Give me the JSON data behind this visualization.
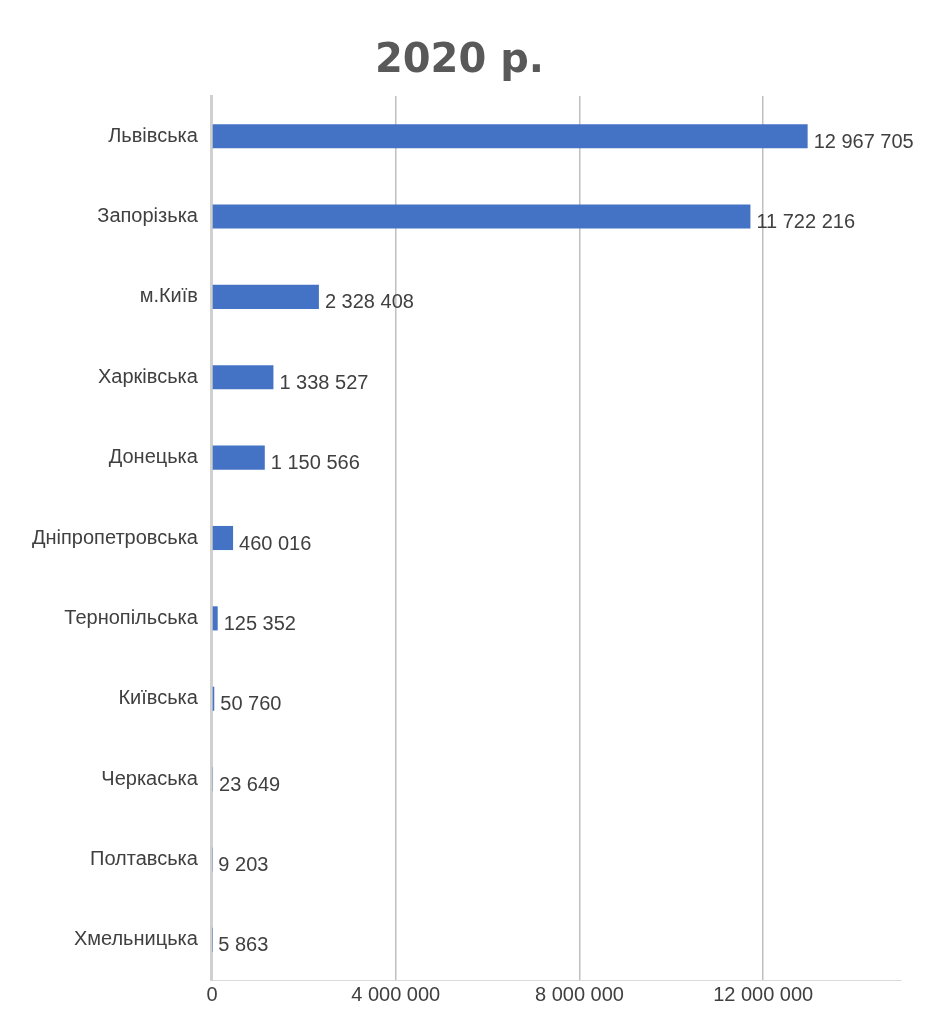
{
  "chart_data": {
    "type": "bar",
    "orientation": "horizontal",
    "title": "2020 р.",
    "categories": [
      "Львівська",
      "Запорізька",
      "м.Київ",
      "Харківська",
      "Донецька",
      "Дніпропетровська",
      "Тернопільська",
      "Київська",
      "Черкаська",
      "Полтавська",
      "Хмельницька"
    ],
    "values": [
      12967705,
      11722216,
      2328408,
      1338527,
      1150566,
      460016,
      125352,
      50760,
      23649,
      9203,
      5863
    ],
    "color": "#4472c4",
    "data_labels": true,
    "grid": "x",
    "xlim": [
      0,
      15000000
    ],
    "xticks": [
      0,
      {
        "value": 4000000,
        "label": "4 000 000"
      },
      {
        "value": 8000000,
        "label": "8 000 000"
      },
      {
        "value": 12000000,
        "label": "12 000 000"
      }
    ]
  }
}
